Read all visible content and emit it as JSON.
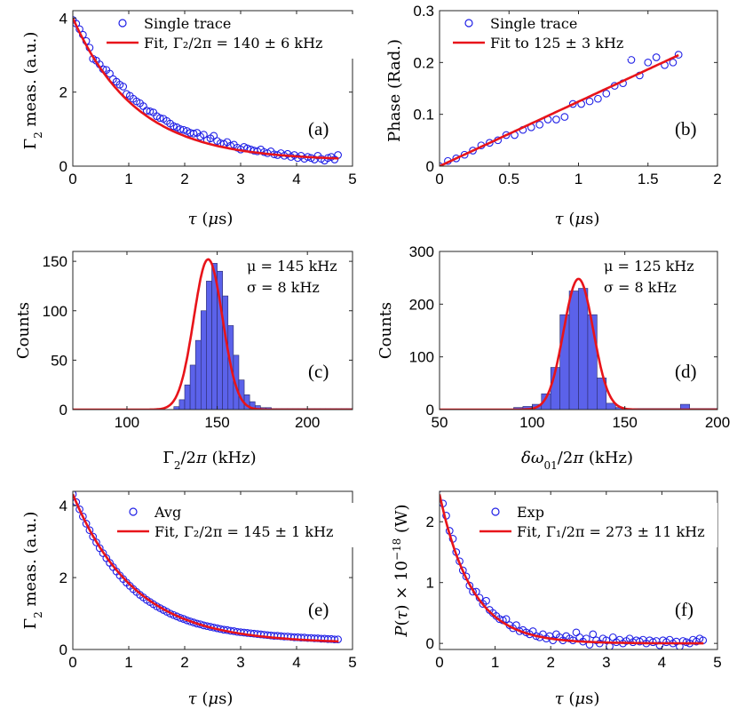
{
  "chart_data": [
    {
      "id": "a",
      "type": "scatter",
      "panel_label": "(a)",
      "xlabel": "τ (μs)",
      "ylabel": "Γ₂ meas. (a.u.)",
      "xlim": [
        0,
        5
      ],
      "ylim": [
        0,
        4.2
      ],
      "xticks": [
        "0",
        "1",
        "2",
        "3",
        "4",
        "5"
      ],
      "yticks": [
        "0",
        "2",
        "4"
      ],
      "legend": [
        {
          "name": "Single trace",
          "kind": "marker"
        },
        {
          "name": "Fit, Γ₂/2π = 140 ± 6 kHz",
          "kind": "line"
        }
      ],
      "fit": {
        "model": "exp",
        "A": 3.85,
        "rate": 0.88,
        "offset": 0.15,
        "xmin": 0,
        "xmax": 4.75
      },
      "series": [
        {
          "name": "Single trace",
          "x": [
            0.0,
            0.06,
            0.12,
            0.18,
            0.24,
            0.3,
            0.36,
            0.42,
            0.48,
            0.54,
            0.6,
            0.66,
            0.72,
            0.78,
            0.84,
            0.9,
            0.96,
            1.02,
            1.08,
            1.14,
            1.2,
            1.26,
            1.32,
            1.38,
            1.44,
            1.5,
            1.56,
            1.62,
            1.68,
            1.74,
            1.8,
            1.86,
            1.92,
            1.98,
            2.04,
            2.1,
            2.16,
            2.22,
            2.28,
            2.34,
            2.4,
            2.46,
            2.52,
            2.58,
            2.64,
            2.7,
            2.76,
            2.82,
            2.88,
            2.94,
            3.0,
            3.06,
            3.12,
            3.18,
            3.24,
            3.3,
            3.36,
            3.42,
            3.48,
            3.54,
            3.6,
            3.66,
            3.72,
            3.78,
            3.84,
            3.9,
            3.96,
            4.02,
            4.08,
            4.14,
            4.2,
            4.26,
            4.32,
            4.38,
            4.44,
            4.5,
            4.56,
            4.62,
            4.68,
            4.74
          ],
          "y": [
            3.95,
            3.85,
            3.7,
            3.55,
            3.38,
            3.2,
            2.9,
            2.85,
            2.75,
            2.62,
            2.6,
            2.5,
            2.35,
            2.28,
            2.2,
            2.15,
            1.95,
            1.9,
            1.82,
            1.75,
            1.7,
            1.62,
            1.5,
            1.48,
            1.45,
            1.35,
            1.3,
            1.28,
            1.22,
            1.15,
            1.08,
            1.05,
            1.0,
            0.98,
            0.95,
            0.9,
            0.88,
            0.9,
            0.8,
            0.85,
            0.7,
            0.75,
            0.82,
            0.68,
            0.62,
            0.6,
            0.65,
            0.55,
            0.58,
            0.5,
            0.45,
            0.52,
            0.48,
            0.45,
            0.42,
            0.4,
            0.45,
            0.38,
            0.35,
            0.4,
            0.32,
            0.3,
            0.35,
            0.28,
            0.33,
            0.25,
            0.3,
            0.22,
            0.28,
            0.2,
            0.25,
            0.22,
            0.18,
            0.28,
            0.2,
            0.15,
            0.22,
            0.25,
            0.18,
            0.3
          ]
        }
      ]
    },
    {
      "id": "b",
      "type": "scatter",
      "panel_label": "(b)",
      "xlabel": "τ (μs)",
      "ylabel": "Phase (Rad.)",
      "xlim": [
        0,
        2
      ],
      "ylim": [
        0,
        0.3
      ],
      "xticks": [
        "0",
        "0.5",
        "1",
        "1.5",
        "2"
      ],
      "yticks": [
        "0",
        "0.1",
        "0.2",
        "0.3"
      ],
      "legend": [
        {
          "name": "Single trace",
          "kind": "marker"
        },
        {
          "name": "Fit to 125 ± 3 kHz",
          "kind": "line"
        }
      ],
      "fit": {
        "model": "linear",
        "slope": 0.1245,
        "intercept": 0.0,
        "xmin": 0,
        "xmax": 1.72
      },
      "series": [
        {
          "name": "Single trace",
          "x": [
            0.0,
            0.06,
            0.12,
            0.18,
            0.24,
            0.3,
            0.36,
            0.42,
            0.48,
            0.54,
            0.6,
            0.66,
            0.72,
            0.78,
            0.84,
            0.9,
            0.96,
            1.02,
            1.08,
            1.14,
            1.2,
            1.26,
            1.32,
            1.38,
            1.44,
            1.5,
            1.56,
            1.62,
            1.68,
            1.72
          ],
          "y": [
            0.0,
            0.01,
            0.015,
            0.022,
            0.03,
            0.04,
            0.045,
            0.05,
            0.06,
            0.06,
            0.07,
            0.075,
            0.08,
            0.09,
            0.09,
            0.095,
            0.12,
            0.12,
            0.125,
            0.13,
            0.14,
            0.155,
            0.16,
            0.205,
            0.175,
            0.2,
            0.21,
            0.195,
            0.2,
            0.215
          ]
        }
      ]
    },
    {
      "id": "c",
      "type": "bar",
      "panel_label": "(c)",
      "xlabel": "Γ₂/2π (kHz)",
      "ylabel": "Counts",
      "xlim": [
        70,
        225
      ],
      "ylim": [
        0,
        160
      ],
      "xticks": [
        "100",
        "150",
        "200"
      ],
      "yticks": [
        "0",
        "50",
        "100",
        "150"
      ],
      "annotation": [
        "μ = 145 kHz",
        "σ = 8 kHz"
      ],
      "bins": {
        "start": 126,
        "width": 3,
        "counts": [
          3,
          10,
          25,
          45,
          70,
          100,
          130,
          148,
          140,
          115,
          85,
          55,
          30,
          15,
          8,
          4,
          2,
          2,
          1,
          1,
          1,
          1,
          1,
          1,
          1,
          1,
          1,
          1,
          1,
          1,
          1,
          1,
          1,
          1
        ]
      },
      "fit": {
        "model": "gauss",
        "amp": 152,
        "mu": 145,
        "sigma": 8
      },
      "baseline_start": 70
    },
    {
      "id": "d",
      "type": "bar",
      "panel_label": "(d)",
      "xlabel": "δω₀₁/2π (kHz)",
      "ylabel": "Counts",
      "xlim": [
        50,
        200
      ],
      "ylim": [
        0,
        300
      ],
      "xticks": [
        "50",
        "100",
        "150",
        "200"
      ],
      "yticks": [
        "0",
        "100",
        "200",
        "300"
      ],
      "annotation": [
        "μ = 125 kHz",
        "σ = 8 kHz"
      ],
      "bins": {
        "start": 90,
        "width": 5,
        "counts": [
          4,
          6,
          10,
          30,
          80,
          180,
          225,
          230,
          180,
          60,
          12,
          4,
          2,
          2,
          2,
          2,
          2,
          2,
          10,
          2,
          2,
          2
        ]
      },
      "fit": {
        "model": "gauss",
        "amp": 248,
        "mu": 125,
        "sigma": 8
      },
      "baseline_start": 50
    },
    {
      "id": "e",
      "type": "scatter",
      "panel_label": "(e)",
      "xlabel": "τ (μs)",
      "ylabel": "Γ₂ meas. (a.u.)",
      "xlim": [
        0,
        5
      ],
      "ylim": [
        0,
        4.4
      ],
      "xticks": [
        "0",
        "1",
        "2",
        "3",
        "4",
        "5"
      ],
      "yticks": [
        "0",
        "2",
        "4"
      ],
      "legend": [
        {
          "name": "Avg",
          "kind": "marker"
        },
        {
          "name": "Fit, Γ₂/2π = 145 ± 1 kHz",
          "kind": "line"
        }
      ],
      "fit": {
        "model": "exp",
        "A": 4.15,
        "rate": 0.91,
        "offset": 0.17,
        "xmin": 0,
        "xmax": 4.75
      },
      "series": [
        {
          "name": "Avg",
          "x": [
            0.0,
            0.06,
            0.12,
            0.18,
            0.24,
            0.3,
            0.36,
            0.42,
            0.48,
            0.54,
            0.6,
            0.66,
            0.72,
            0.78,
            0.84,
            0.9,
            0.96,
            1.02,
            1.08,
            1.14,
            1.2,
            1.26,
            1.32,
            1.38,
            1.44,
            1.5,
            1.56,
            1.62,
            1.68,
            1.74,
            1.8,
            1.86,
            1.92,
            1.98,
            2.04,
            2.1,
            2.16,
            2.22,
            2.28,
            2.34,
            2.4,
            2.46,
            2.52,
            2.58,
            2.64,
            2.7,
            2.76,
            2.82,
            2.88,
            2.94,
            3.0,
            3.06,
            3.12,
            3.18,
            3.24,
            3.3,
            3.36,
            3.42,
            3.48,
            3.54,
            3.6,
            3.66,
            3.72,
            3.78,
            3.84,
            3.9,
            3.96,
            4.02,
            4.08,
            4.14,
            4.2,
            4.26,
            4.32,
            4.38,
            4.44,
            4.5,
            4.56,
            4.62,
            4.68,
            4.74
          ],
          "y": [
            4.32,
            4.1,
            3.9,
            3.7,
            3.5,
            3.32,
            3.14,
            2.98,
            2.82,
            2.68,
            2.54,
            2.41,
            2.29,
            2.17,
            2.06,
            1.96,
            1.86,
            1.77,
            1.68,
            1.6,
            1.52,
            1.45,
            1.38,
            1.32,
            1.26,
            1.2,
            1.15,
            1.1,
            1.05,
            1.0,
            0.96,
            0.92,
            0.88,
            0.85,
            0.81,
            0.78,
            0.75,
            0.72,
            0.7,
            0.67,
            0.65,
            0.63,
            0.61,
            0.59,
            0.57,
            0.55,
            0.54,
            0.52,
            0.51,
            0.49,
            0.48,
            0.47,
            0.46,
            0.45,
            0.44,
            0.43,
            0.42,
            0.41,
            0.4,
            0.39,
            0.38,
            0.38,
            0.37,
            0.36,
            0.36,
            0.35,
            0.34,
            0.34,
            0.33,
            0.33,
            0.32,
            0.32,
            0.31,
            0.31,
            0.3,
            0.3,
            0.29,
            0.29,
            0.28,
            0.28
          ]
        }
      ]
    },
    {
      "id": "f",
      "type": "scatter",
      "panel_label": "(f)",
      "xlabel": "τ (μs)",
      "ylabel": "P(τ) × 10⁻¹⁸ (W)",
      "xlim": [
        0,
        5
      ],
      "ylim": [
        -0.1,
        2.5
      ],
      "xticks": [
        "0",
        "1",
        "2",
        "3",
        "4",
        "5"
      ],
      "yticks": [
        "0",
        "1",
        "2"
      ],
      "legend": [
        {
          "name": "Exp",
          "kind": "marker"
        },
        {
          "name": "Fit, Γ₁/2π = 273 ± 11 kHz",
          "kind": "line"
        }
      ],
      "fit": {
        "model": "exp",
        "A": 2.45,
        "rate": 1.72,
        "offset": 0.0,
        "xmin": 0,
        "xmax": 4.75
      },
      "series": [
        {
          "name": "Exp",
          "x": [
            0.0,
            0.06,
            0.12,
            0.18,
            0.24,
            0.3,
            0.36,
            0.42,
            0.48,
            0.54,
            0.6,
            0.66,
            0.72,
            0.78,
            0.84,
            0.9,
            0.96,
            1.02,
            1.08,
            1.14,
            1.2,
            1.26,
            1.32,
            1.38,
            1.44,
            1.5,
            1.56,
            1.62,
            1.68,
            1.74,
            1.8,
            1.86,
            1.92,
            1.98,
            2.04,
            2.1,
            2.16,
            2.22,
            2.28,
            2.34,
            2.4,
            2.46,
            2.52,
            2.58,
            2.64,
            2.7,
            2.76,
            2.82,
            2.88,
            2.94,
            3.0,
            3.06,
            3.12,
            3.18,
            3.24,
            3.3,
            3.36,
            3.42,
            3.48,
            3.54,
            3.6,
            3.66,
            3.72,
            3.78,
            3.84,
            3.9,
            3.96,
            4.02,
            4.08,
            4.14,
            4.2,
            4.26,
            4.32,
            4.38,
            4.44,
            4.5,
            4.56,
            4.62,
            4.68,
            4.74
          ],
          "y": [
            2.55,
            2.3,
            2.1,
            1.85,
            1.72,
            1.5,
            1.35,
            1.2,
            1.1,
            0.95,
            0.85,
            0.85,
            0.75,
            0.65,
            0.7,
            0.55,
            0.5,
            0.45,
            0.4,
            0.38,
            0.4,
            0.3,
            0.25,
            0.3,
            0.2,
            0.22,
            0.18,
            0.15,
            0.2,
            0.12,
            0.1,
            0.15,
            0.08,
            0.12,
            0.05,
            0.15,
            0.1,
            0.05,
            0.12,
            0.08,
            0.05,
            0.18,
            0.1,
            0.03,
            0.08,
            -0.02,
            0.15,
            0.05,
            0.0,
            0.08,
            0.05,
            -0.05,
            0.1,
            0.02,
            0.06,
            0.0,
            0.04,
            0.08,
            0.02,
            0.05,
            0.03,
            0.06,
            0.0,
            0.05,
            0.02,
            0.04,
            -0.03,
            0.05,
            0.02,
            0.06,
            0.0,
            0.03,
            -0.05,
            0.04,
            0.02,
            0.0,
            0.06,
            0.03,
            0.08,
            0.05
          ]
        }
      ]
    }
  ]
}
